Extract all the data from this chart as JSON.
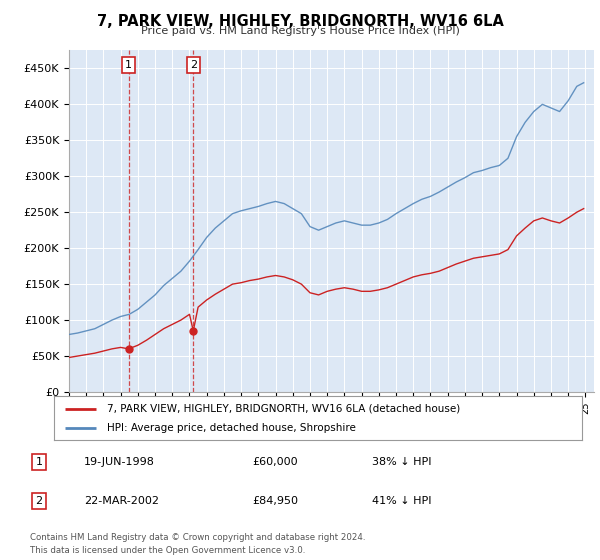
{
  "title": "7, PARK VIEW, HIGHLEY, BRIDGNORTH, WV16 6LA",
  "subtitle": "Price paid vs. HM Land Registry's House Price Index (HPI)",
  "background_color": "#ffffff",
  "plot_bg_color": "#dde8f5",
  "grid_color": "#ffffff",
  "hpi_color": "#5588bb",
  "price_color": "#cc2222",
  "ylim": [
    0,
    475000
  ],
  "yticks": [
    0,
    50000,
    100000,
    150000,
    200000,
    250000,
    300000,
    350000,
    400000,
    450000
  ],
  "ytick_labels": [
    "£0",
    "£50K",
    "£100K",
    "£150K",
    "£200K",
    "£250K",
    "£300K",
    "£350K",
    "£400K",
    "£450K"
  ],
  "purchase1_date": "19-JUN-1998",
  "purchase1_price": "£60,000",
  "purchase1_pct": "38% ↓ HPI",
  "purchase1_x": 1998.46,
  "purchase1_y": 60000,
  "purchase2_date": "22-MAR-2002",
  "purchase2_price": "£84,950",
  "purchase2_pct": "41% ↓ HPI",
  "purchase2_x": 2002.22,
  "purchase2_y": 84950,
  "legend_label1": "7, PARK VIEW, HIGHLEY, BRIDGNORTH, WV16 6LA (detached house)",
  "legend_label2": "HPI: Average price, detached house, Shropshire",
  "footnote1": "Contains HM Land Registry data © Crown copyright and database right 2024.",
  "footnote2": "This data is licensed under the Open Government Licence v3.0.",
  "xlim_start": 1995.0,
  "xlim_end": 2025.5
}
